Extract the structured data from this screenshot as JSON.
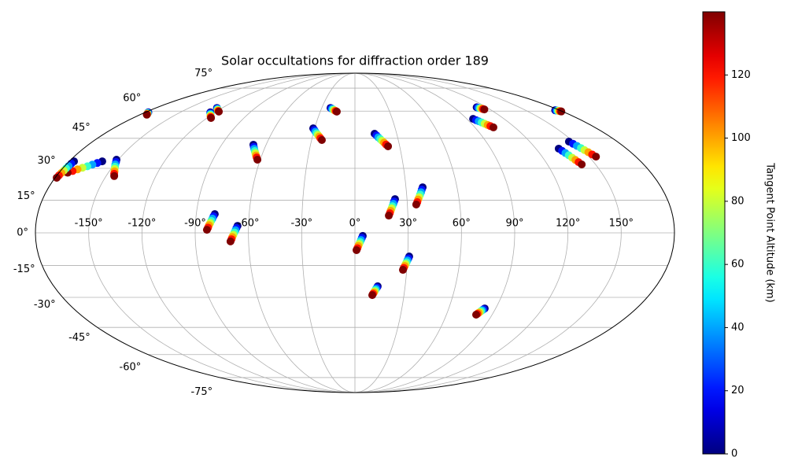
{
  "chart_data": {
    "type": "scatter",
    "projection": "mollweide",
    "title": "Solar occultations for diffraction order 189",
    "colorbar_label": "Tangent Point Altitude (km)",
    "colormap": "jet",
    "clim": [
      0,
      140
    ],
    "cticks": [
      0,
      20,
      40,
      60,
      80,
      100,
      120
    ],
    "grid": true,
    "xlim": [
      -180,
      180
    ],
    "ylim": [
      -90,
      90
    ],
    "xticks": [
      {
        "value": -150,
        "label": "-150°"
      },
      {
        "value": -120,
        "label": "-120°"
      },
      {
        "value": -90,
        "label": "-90°"
      },
      {
        "value": -60,
        "label": "-60°"
      },
      {
        "value": -30,
        "label": "-30°"
      },
      {
        "value": 0,
        "label": "0°"
      },
      {
        "value": 30,
        "label": "30°"
      },
      {
        "value": 60,
        "label": "60°"
      },
      {
        "value": 90,
        "label": "90°"
      },
      {
        "value": 120,
        "label": "120°"
      },
      {
        "value": 150,
        "label": "150°"
      }
    ],
    "yticks": [
      {
        "value": -75,
        "label": "-75°"
      },
      {
        "value": -60,
        "label": "-60°"
      },
      {
        "value": -45,
        "label": "-45°"
      },
      {
        "value": -30,
        "label": "-30°"
      },
      {
        "value": -15,
        "label": "-15°"
      },
      {
        "value": 0,
        "label": "0°"
      },
      {
        "value": 15,
        "label": "15°"
      },
      {
        "value": 30,
        "label": "30°"
      },
      {
        "value": 45,
        "label": "45°"
      },
      {
        "value": 60,
        "label": "60°"
      },
      {
        "value": 75,
        "label": "75°"
      }
    ],
    "altitude": [
      0,
      20,
      40,
      60,
      80,
      100,
      120,
      140
    ],
    "tracks": [
      {
        "lon": [
          -22.1,
          -21.2,
          -20.3,
          -19.4,
          -18.4,
          -17.5,
          -16.6,
          -15.7
        ],
        "lat": [
          61.9,
          61.6,
          61.3,
          61.0,
          60.6,
          60.3,
          60.0,
          59.7
        ]
      },
      {
        "lon": [
          -31.1,
          -29.9,
          -28.8,
          -27.6,
          -26.4,
          -25.2,
          -24.1,
          -22.9
        ],
        "lat": [
          50.3,
          49.4,
          48.5,
          47.6,
          46.8,
          45.9,
          45.0,
          44.1
        ]
      },
      {
        "lon": [
          14.1,
          15.3,
          16.4,
          17.6,
          18.7,
          19.9,
          21.0,
          22.2
        ],
        "lat": [
          47.4,
          46.5,
          45.5,
          44.6,
          43.7,
          42.8,
          41.8,
          40.9
        ]
      },
      {
        "lon": [
          111.0,
          111.6,
          112.1,
          112.7,
          113.2,
          113.8,
          114.3,
          114.9
        ],
        "lat": [
          62.3,
          62.1,
          61.9,
          61.7,
          61.6,
          61.4,
          61.2,
          61.0
        ]
      },
      {
        "lon": [
          95.0,
          96.3,
          97.5,
          98.8,
          100.1,
          101.4,
          102.6,
          103.9
        ],
        "lat": [
          55.5,
          54.8,
          54.2,
          53.5,
          52.8,
          52.1,
          51.5,
          50.8
        ]
      },
      {
        "lon": [
          176.0,
          176.4,
          176.9,
          177.3,
          177.7,
          178.1,
          178.6,
          179.0
        ],
        "lat": [
          60.5,
          60.4,
          60.3,
          60.2,
          60.1,
          60.0,
          59.9,
          59.8
        ]
      },
      {
        "lon": [
          146.9,
          148.0,
          149.1,
          150.2,
          151.2,
          152.3,
          153.4,
          154.5
        ],
        "lat": [
          43.3,
          42.2,
          41.1,
          40.0,
          39.0,
          37.9,
          36.8,
          35.7
        ]
      },
      {
        "lon": [
          135.1,
          136.0,
          136.9,
          137.8,
          138.7,
          139.6,
          140.5,
          141.4
        ],
        "lat": [
          39.7,
          38.6,
          37.5,
          36.4,
          35.2,
          34.1,
          33.0,
          31.9
        ]
      },
      {
        "lon": [
          -68.6,
          -67.6,
          -66.7,
          -65.7,
          -64.7,
          -63.7,
          -62.8,
          -61.8
        ],
        "lat": [
          41.7,
          40.6,
          39.6,
          38.5,
          37.4,
          36.3,
          35.3,
          34.2
        ]
      },
      {
        "lon": [
          -124.8,
          -123.8,
          -122.8,
          -121.8,
          -120.8,
          -119.8,
          -118.8,
          -117.8
        ],
        "lat": [
          61.9,
          61.6,
          61.3,
          61.0,
          60.6,
          60.3,
          60.0,
          59.7
        ]
      },
      {
        "lon": [
          -124.2,
          -123.1,
          -122.1,
          -121.0,
          -119.9,
          -118.8,
          -117.8,
          -116.7
        ],
        "lat": [
          59.3,
          58.8,
          58.4,
          57.9,
          57.4,
          56.9,
          56.5,
          56.0
        ]
      },
      {
        "lon": [
          -177.5,
          -177.0,
          -176.6,
          -176.1,
          -175.7,
          -175.2,
          -174.8,
          -174.3
        ],
        "lat": [
          59.3,
          59.1,
          58.9,
          58.7,
          58.5,
          58.3,
          58.1,
          57.9
        ]
      },
      {
        "lon": [
          -151.1,
          -150.2,
          -149.4,
          -148.5,
          -147.7,
          -146.8,
          -146.0,
          -145.1
        ],
        "lat": [
          34.2,
          33.1,
          31.9,
          30.8,
          29.7,
          28.6,
          27.4,
          26.3
        ]
      },
      {
        "lon": [
          -159.2,
          -161.4,
          -163.6,
          -165.8,
          -168.1,
          -170.3,
          -172.5,
          -174.7
        ],
        "lat": [
          33.4,
          32.6,
          31.8,
          31.0,
          30.3,
          29.5,
          28.7,
          27.9
        ]
      },
      {
        "lon": [
          -177.0,
          -177.3,
          -177.6,
          -177.9,
          -178.1,
          -178.4,
          -178.7,
          -179.0
        ],
        "lat": [
          33.4,
          32.3,
          31.1,
          30.0,
          28.9,
          27.8,
          26.6,
          25.5
        ]
      },
      {
        "lon": [
          -79.5,
          -80.1,
          -80.6,
          -81.2,
          -81.7,
          -82.3,
          -82.8,
          -83.4
        ],
        "lat": [
          8.6,
          7.6,
          6.5,
          5.5,
          4.5,
          3.5,
          2.4,
          1.4
        ]
      },
      {
        "lon": [
          -66.2,
          -66.8,
          -67.3,
          -67.9,
          -68.5,
          -69.1,
          -69.6,
          -70.2
        ],
        "lat": [
          3.2,
          2.2,
          1.2,
          0.2,
          -0.9,
          -1.9,
          -2.9,
          -3.9
        ]
      },
      {
        "lon": [
          23.1,
          22.5,
          22.0,
          21.4,
          20.9,
          20.3,
          19.8,
          19.2
        ],
        "lat": [
          15.5,
          14.4,
          13.3,
          12.2,
          11.2,
          10.1,
          9.0,
          7.9
        ]
      },
      {
        "lon": [
          39.8,
          39.1,
          38.5,
          37.8,
          37.1,
          36.4,
          35.8,
          35.1
        ],
        "lat": [
          21.0,
          19.9,
          18.7,
          17.6,
          16.4,
          15.3,
          14.1,
          13.0
        ]
      },
      {
        "lon": [
          4.4,
          3.9,
          3.4,
          2.9,
          2.4,
          1.9,
          1.4,
          0.9
        ],
        "lat": [
          -1.4,
          -2.3,
          -3.3,
          -4.2,
          -5.1,
          -6.0,
          -7.0,
          -7.9
        ]
      },
      {
        "lon": [
          30.9,
          30.5,
          30.0,
          29.6,
          29.1,
          28.7,
          28.2,
          27.8
        ],
        "lat": [
          -10.8,
          -11.7,
          -12.6,
          -13.5,
          -14.3,
          -15.2,
          -16.1,
          -17.0
        ]
      },
      {
        "lon": [
          13.6,
          13.2,
          12.7,
          12.3,
          11.9,
          11.5,
          11.0,
          10.6
        ],
        "lat": [
          -24.7,
          -25.3,
          -25.9,
          -26.5,
          -27.1,
          -27.7,
          -28.3,
          -28.9
        ]
      },
      {
        "lon": [
          83.0,
          82.5,
          82.0,
          81.5,
          81.0,
          80.5,
          80.0,
          79.5
        ],
        "lat": [
          -35.4,
          -35.8,
          -36.3,
          -36.7,
          -37.2,
          -37.6,
          -38.1,
          -38.5
        ]
      }
    ]
  }
}
